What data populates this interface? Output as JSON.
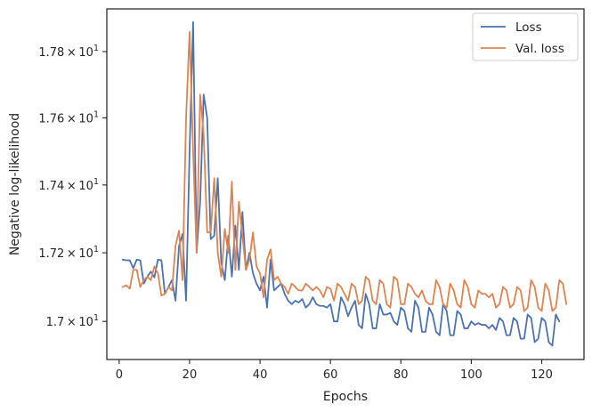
{
  "chart_data": {
    "type": "line",
    "xlabel": "Epochs",
    "ylabel": "Negative log-likelihood",
    "xlim": [
      -3.5,
      132
    ],
    "ylim": [
      16.89,
      17.93
    ],
    "y_scale": "log",
    "grid": false,
    "legend_position": "top-right",
    "x_ticks": [
      0,
      20,
      40,
      60,
      80,
      100,
      120
    ],
    "x_tick_labels": [
      "0",
      "20",
      "40",
      "60",
      "80",
      "100",
      "120"
    ],
    "y_ticks": [
      17.0,
      17.2,
      17.4,
      17.6,
      17.8
    ],
    "y_tick_labels": [
      {
        "mantissa": "1.7",
        "times": "×",
        "base": "10",
        "exp": "1"
      },
      {
        "mantissa": "1.72",
        "times": "×",
        "base": "10",
        "exp": "1"
      },
      {
        "mantissa": "1.74",
        "times": "×",
        "base": "10",
        "exp": "1"
      },
      {
        "mantissa": "1.76",
        "times": "×",
        "base": "10",
        "exp": "1"
      },
      {
        "mantissa": "1.78",
        "times": "×",
        "base": "10",
        "exp": "1"
      }
    ],
    "colors": {
      "loss": "#4c72b0",
      "val_loss": "#dd8452",
      "axes": "#262626"
    },
    "series": [
      {
        "name": "Loss",
        "x_start": 1,
        "values": [
          17.18,
          17.178,
          17.178,
          17.155,
          17.18,
          17.178,
          17.11,
          17.13,
          17.145,
          17.128,
          17.18,
          17.178,
          17.08,
          17.1,
          17.12,
          17.06,
          17.22,
          17.255,
          17.06,
          17.5,
          17.89,
          17.2,
          17.35,
          17.67,
          17.6,
          17.24,
          17.25,
          17.42,
          17.17,
          17.12,
          17.25,
          17.13,
          17.28,
          17.15,
          17.32,
          17.15,
          17.2,
          17.14,
          17.11,
          17.09,
          17.13,
          17.04,
          17.18,
          17.09,
          17.1,
          17.11,
          17.08,
          17.06,
          17.05,
          17.06,
          17.055,
          17.065,
          17.04,
          17.05,
          17.07,
          17.05,
          17.045,
          17.045,
          17.04,
          17.05,
          17.0,
          17.0,
          17.07,
          17.05,
          17.015,
          17.04,
          17.06,
          16.99,
          16.98,
          17.08,
          17.05,
          16.98,
          16.98,
          17.05,
          17.02,
          17.02,
          17.025,
          17.0,
          16.99,
          17.04,
          17.03,
          16.98,
          16.97,
          17.06,
          17.04,
          16.97,
          16.97,
          17.04,
          17.02,
          16.97,
          16.96,
          17.05,
          17.03,
          16.96,
          16.96,
          17.03,
          17.02,
          16.98,
          16.98,
          17.0,
          16.99,
          16.995,
          16.99,
          16.99,
          16.98,
          16.99,
          16.975,
          17.01,
          17.0,
          16.96,
          16.96,
          17.01,
          17.0,
          16.95,
          16.95,
          17.02,
          17.01,
          16.94,
          16.95,
          17.01,
          17.0,
          16.94,
          16.93,
          17.02,
          17.0
        ]
      },
      {
        "name": "Val. loss",
        "x_start": 1,
        "values": [
          17.1,
          17.105,
          17.095,
          17.15,
          17.15,
          17.1,
          17.12,
          17.13,
          17.12,
          17.16,
          17.14,
          17.075,
          17.08,
          17.1,
          17.09,
          17.22,
          17.265,
          17.12,
          17.6,
          17.86,
          17.5,
          17.2,
          17.67,
          17.55,
          17.26,
          17.26,
          17.42,
          17.2,
          17.13,
          17.27,
          17.2,
          17.41,
          17.15,
          17.35,
          17.25,
          17.15,
          17.18,
          17.26,
          17.16,
          17.14,
          17.07,
          17.18,
          17.21,
          17.12,
          17.13,
          17.11,
          17.1,
          17.08,
          17.11,
          17.1,
          17.09,
          17.09,
          17.11,
          17.1,
          17.09,
          17.1,
          17.09,
          17.07,
          17.1,
          17.095,
          17.06,
          17.11,
          17.1,
          17.08,
          17.06,
          17.11,
          17.1,
          17.05,
          17.06,
          17.13,
          17.12,
          17.06,
          17.05,
          17.12,
          17.11,
          17.05,
          17.04,
          17.13,
          17.12,
          17.05,
          17.05,
          17.11,
          17.1,
          17.08,
          17.07,
          17.09,
          17.06,
          17.05,
          17.05,
          17.12,
          17.1,
          17.05,
          17.04,
          17.11,
          17.09,
          17.05,
          17.04,
          17.12,
          17.1,
          17.05,
          17.04,
          17.09,
          17.08,
          17.08,
          17.07,
          17.08,
          17.04,
          17.05,
          17.1,
          17.09,
          17.04,
          17.05,
          17.1,
          17.09,
          17.03,
          17.04,
          17.12,
          17.1,
          17.04,
          17.03,
          17.11,
          17.09,
          17.03,
          17.04,
          17.12,
          17.11,
          17.05
        ]
      }
    ]
  }
}
